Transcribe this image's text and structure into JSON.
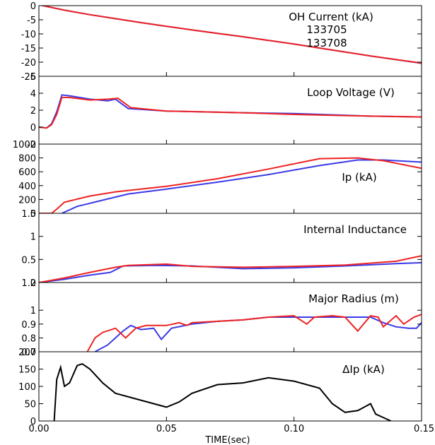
{
  "xaxis": {
    "label": "TIME(sec)",
    "range": [
      0.0,
      0.15
    ],
    "ticks": [
      0.0,
      0.05,
      0.1,
      0.15
    ],
    "tick_labels": [
      "0.00",
      "0.05",
      "0.10",
      "0.15"
    ]
  },
  "colors": {
    "series_a": "#3a3ae6",
    "series_b": "#ee2222",
    "delta": "#000000"
  },
  "chart_data": [
    {
      "type": "line",
      "title": "OH Current (kA)",
      "ylim": [
        -25,
        0
      ],
      "yticks": [
        0,
        -5,
        -10,
        -15,
        -20,
        -25
      ],
      "series": [
        {
          "name": "133705",
          "x": [
            0.0,
            0.01,
            0.02,
            0.03,
            0.04,
            0.05,
            0.06,
            0.07,
            0.08,
            0.09,
            0.1,
            0.11,
            0.12,
            0.13,
            0.14,
            0.15
          ],
          "values": [
            0.3,
            -1.6,
            -3.2,
            -4.6,
            -6.0,
            -7.3,
            -8.6,
            -9.8,
            -11.0,
            -12.3,
            -13.6,
            -15.0,
            -16.4,
            -17.8,
            -19.1,
            -20.4
          ]
        },
        {
          "name": "133708",
          "x": [
            0.0,
            0.01,
            0.02,
            0.03,
            0.04,
            0.05,
            0.06,
            0.07,
            0.08,
            0.09,
            0.1,
            0.11,
            0.12,
            0.13,
            0.14,
            0.15
          ],
          "values": [
            0.3,
            -1.6,
            -3.2,
            -4.6,
            -6.0,
            -7.3,
            -8.6,
            -9.8,
            -11.0,
            -12.3,
            -13.6,
            -15.0,
            -16.4,
            -17.8,
            -19.1,
            -20.3
          ]
        }
      ]
    },
    {
      "type": "line",
      "title": "Loop Voltage (V)",
      "ylim": [
        -2,
        6
      ],
      "yticks": [
        6,
        4,
        2,
        0,
        -2
      ],
      "series": [
        {
          "name": "133705",
          "x": [
            0.0,
            0.003,
            0.005,
            0.007,
            0.009,
            0.012,
            0.02,
            0.027,
            0.03,
            0.035,
            0.05,
            0.08,
            0.1,
            0.13,
            0.15
          ],
          "values": [
            0.0,
            -0.1,
            0.4,
            1.8,
            3.8,
            3.7,
            3.3,
            3.1,
            3.3,
            2.2,
            1.9,
            1.7,
            1.6,
            1.3,
            1.2
          ]
        },
        {
          "name": "133708",
          "x": [
            0.0,
            0.003,
            0.005,
            0.007,
            0.009,
            0.012,
            0.02,
            0.027,
            0.031,
            0.036,
            0.05,
            0.08,
            0.1,
            0.13,
            0.15
          ],
          "values": [
            0.0,
            -0.1,
            0.3,
            1.5,
            3.5,
            3.5,
            3.2,
            3.3,
            3.4,
            2.3,
            1.9,
            1.7,
            1.5,
            1.3,
            1.2
          ]
        }
      ]
    },
    {
      "type": "line",
      "title": "Ip (kA)",
      "ylim": [
        0,
        1000
      ],
      "yticks": [
        1000,
        800,
        600,
        400,
        200,
        0
      ],
      "series": [
        {
          "name": "133705",
          "x": [
            0.009,
            0.015,
            0.025,
            0.035,
            0.05,
            0.07,
            0.09,
            0.11,
            0.125,
            0.135,
            0.15
          ],
          "values": [
            0,
            100,
            190,
            280,
            350,
            450,
            560,
            690,
            770,
            770,
            740
          ]
        },
        {
          "name": "133708",
          "x": [
            0.0,
            0.005,
            0.007,
            0.01,
            0.02,
            0.03,
            0.05,
            0.07,
            0.09,
            0.11,
            0.125,
            0.135,
            0.15
          ],
          "values": [
            0,
            0,
            60,
            160,
            250,
            310,
            390,
            500,
            640,
            790,
            800,
            760,
            650
          ]
        }
      ]
    },
    {
      "type": "line",
      "title": "Internal Inductance",
      "ylim": [
        0.0,
        1.5
      ],
      "yticks": [
        1.5,
        1.0,
        0.5,
        0.0
      ],
      "series": [
        {
          "name": "133705",
          "x": [
            0.0,
            0.01,
            0.02,
            0.028,
            0.033,
            0.045,
            0.06,
            0.08,
            0.1,
            0.12,
            0.14,
            0.15
          ],
          "values": [
            0.0,
            0.07,
            0.16,
            0.22,
            0.36,
            0.37,
            0.36,
            0.3,
            0.32,
            0.36,
            0.41,
            0.43
          ]
        },
        {
          "name": "133708",
          "x": [
            0.0,
            0.01,
            0.02,
            0.03,
            0.035,
            0.05,
            0.06,
            0.08,
            0.1,
            0.12,
            0.14,
            0.15
          ],
          "values": [
            0.0,
            0.1,
            0.22,
            0.33,
            0.37,
            0.4,
            0.35,
            0.33,
            0.35,
            0.38,
            0.46,
            0.58
          ]
        }
      ]
    },
    {
      "type": "line",
      "title": "Major Radius (m)",
      "ylim": [
        0.7,
        1.2
      ],
      "yticks": [
        1.2,
        1.0,
        0.9,
        0.8,
        0.7
      ],
      "series": [
        {
          "name": "133705",
          "x": [
            0.022,
            0.027,
            0.03,
            0.033,
            0.036,
            0.04,
            0.045,
            0.048,
            0.052,
            0.06,
            0.07,
            0.08,
            0.09,
            0.1,
            0.11,
            0.12,
            0.13,
            0.135,
            0.14,
            0.145,
            0.148,
            0.15
          ],
          "values": [
            0.7,
            0.75,
            0.8,
            0.85,
            0.89,
            0.86,
            0.87,
            0.79,
            0.87,
            0.9,
            0.92,
            0.93,
            0.95,
            0.95,
            0.95,
            0.95,
            0.95,
            0.91,
            0.88,
            0.87,
            0.87,
            0.91
          ]
        },
        {
          "name": "133708",
          "x": [
            0.019,
            0.022,
            0.025,
            0.03,
            0.034,
            0.038,
            0.042,
            0.05,
            0.055,
            0.058,
            0.06,
            0.07,
            0.08,
            0.09,
            0.1,
            0.105,
            0.108,
            0.115,
            0.12,
            0.125,
            0.13,
            0.133,
            0.135,
            0.14,
            0.143,
            0.147,
            0.15
          ],
          "values": [
            0.7,
            0.8,
            0.84,
            0.87,
            0.8,
            0.87,
            0.89,
            0.89,
            0.91,
            0.89,
            0.91,
            0.92,
            0.93,
            0.95,
            0.96,
            0.9,
            0.95,
            0.96,
            0.95,
            0.85,
            0.96,
            0.95,
            0.88,
            0.96,
            0.9,
            0.95,
            0.97
          ]
        }
      ]
    },
    {
      "type": "line",
      "title": "ΔIp (kA)",
      "ylim": [
        0,
        200
      ],
      "yticks": [
        200,
        150,
        100,
        50,
        0
      ],
      "series": [
        {
          "name": "",
          "x": [
            0.006,
            0.007,
            0.0085,
            0.01,
            0.012,
            0.015,
            0.017,
            0.02,
            0.025,
            0.03,
            0.04,
            0.05,
            0.055,
            0.06,
            0.07,
            0.08,
            0.09,
            0.1,
            0.11,
            0.115,
            0.12,
            0.125,
            0.13,
            0.132,
            0.135,
            0.138
          ],
          "values": [
            0,
            120,
            155,
            100,
            110,
            160,
            165,
            150,
            110,
            80,
            60,
            40,
            55,
            80,
            105,
            110,
            125,
            115,
            95,
            50,
            25,
            30,
            50,
            20,
            10,
            0
          ]
        }
      ]
    }
  ],
  "legend": {
    "series_a": "133705",
    "series_b": "133708"
  }
}
